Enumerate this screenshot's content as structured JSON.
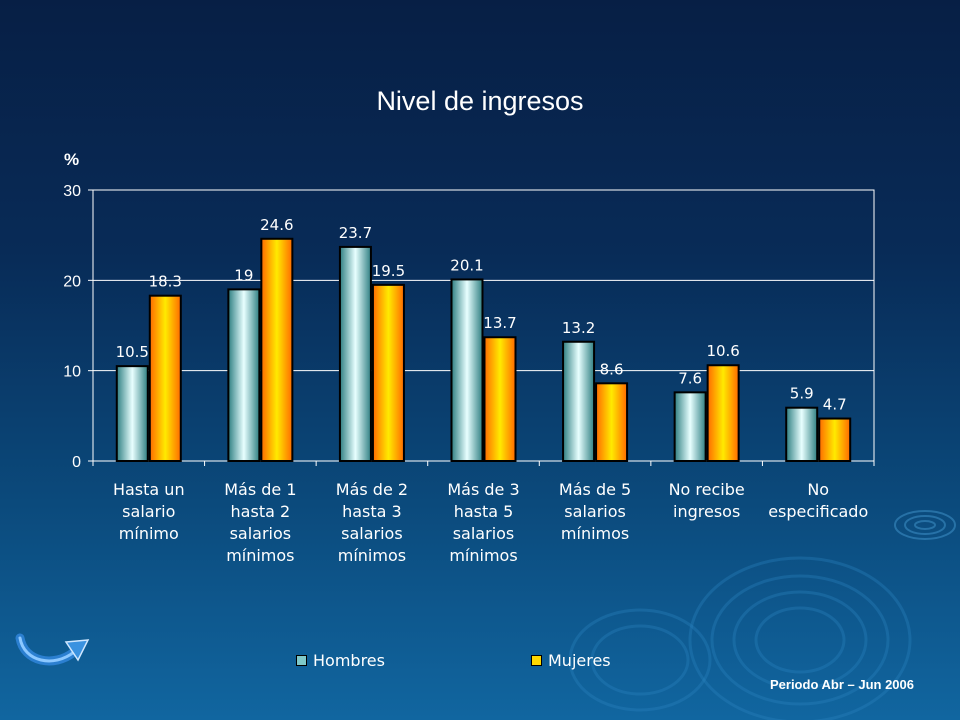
{
  "slide": {
    "title": "Nivel de ingresos",
    "unit_label": "%",
    "footer": "Periodo Abr – Jun 2006",
    "nav_icon": "curved-arrow-icon"
  },
  "colors": {
    "hombres": "#7fc8c8",
    "mujeres": "#ff9a00",
    "axis": "#ffffff",
    "background": "#082b57"
  },
  "chart_data": {
    "type": "bar",
    "title": "Nivel de ingresos",
    "ylabel": "%",
    "xlabel": "",
    "ylim": [
      0,
      30
    ],
    "yticks": [
      "0",
      "10",
      "20",
      "30"
    ],
    "grid": true,
    "legend_position": "bottom",
    "categories": [
      [
        "Hasta un",
        "salario",
        "mínimo"
      ],
      [
        "Más de 1",
        "hasta 2",
        "salarios",
        "mínimos"
      ],
      [
        "Más de 2",
        "hasta 3",
        "salarios",
        "mínimos"
      ],
      [
        "Más de 3",
        "hasta 5",
        "salarios",
        "mínimos"
      ],
      [
        "Más de 5",
        "salarios",
        "mínimos"
      ],
      [
        "No recibe",
        "ingresos"
      ],
      [
        "No",
        "especificado"
      ]
    ],
    "series": [
      {
        "name": "Hombres",
        "values": [
          10.5,
          19,
          23.7,
          20.1,
          13.2,
          7.6,
          5.9
        ],
        "labels": [
          "10.5",
          "19",
          "23.7",
          "20.1",
          "13.2",
          "7.6",
          "5.9"
        ]
      },
      {
        "name": "Mujeres",
        "values": [
          18.3,
          24.6,
          19.5,
          13.7,
          8.6,
          10.6,
          4.7
        ],
        "labels": [
          "18.3",
          "24.6",
          "19.5",
          "13.7",
          "8.6",
          "10.6",
          "4.7"
        ]
      }
    ]
  }
}
